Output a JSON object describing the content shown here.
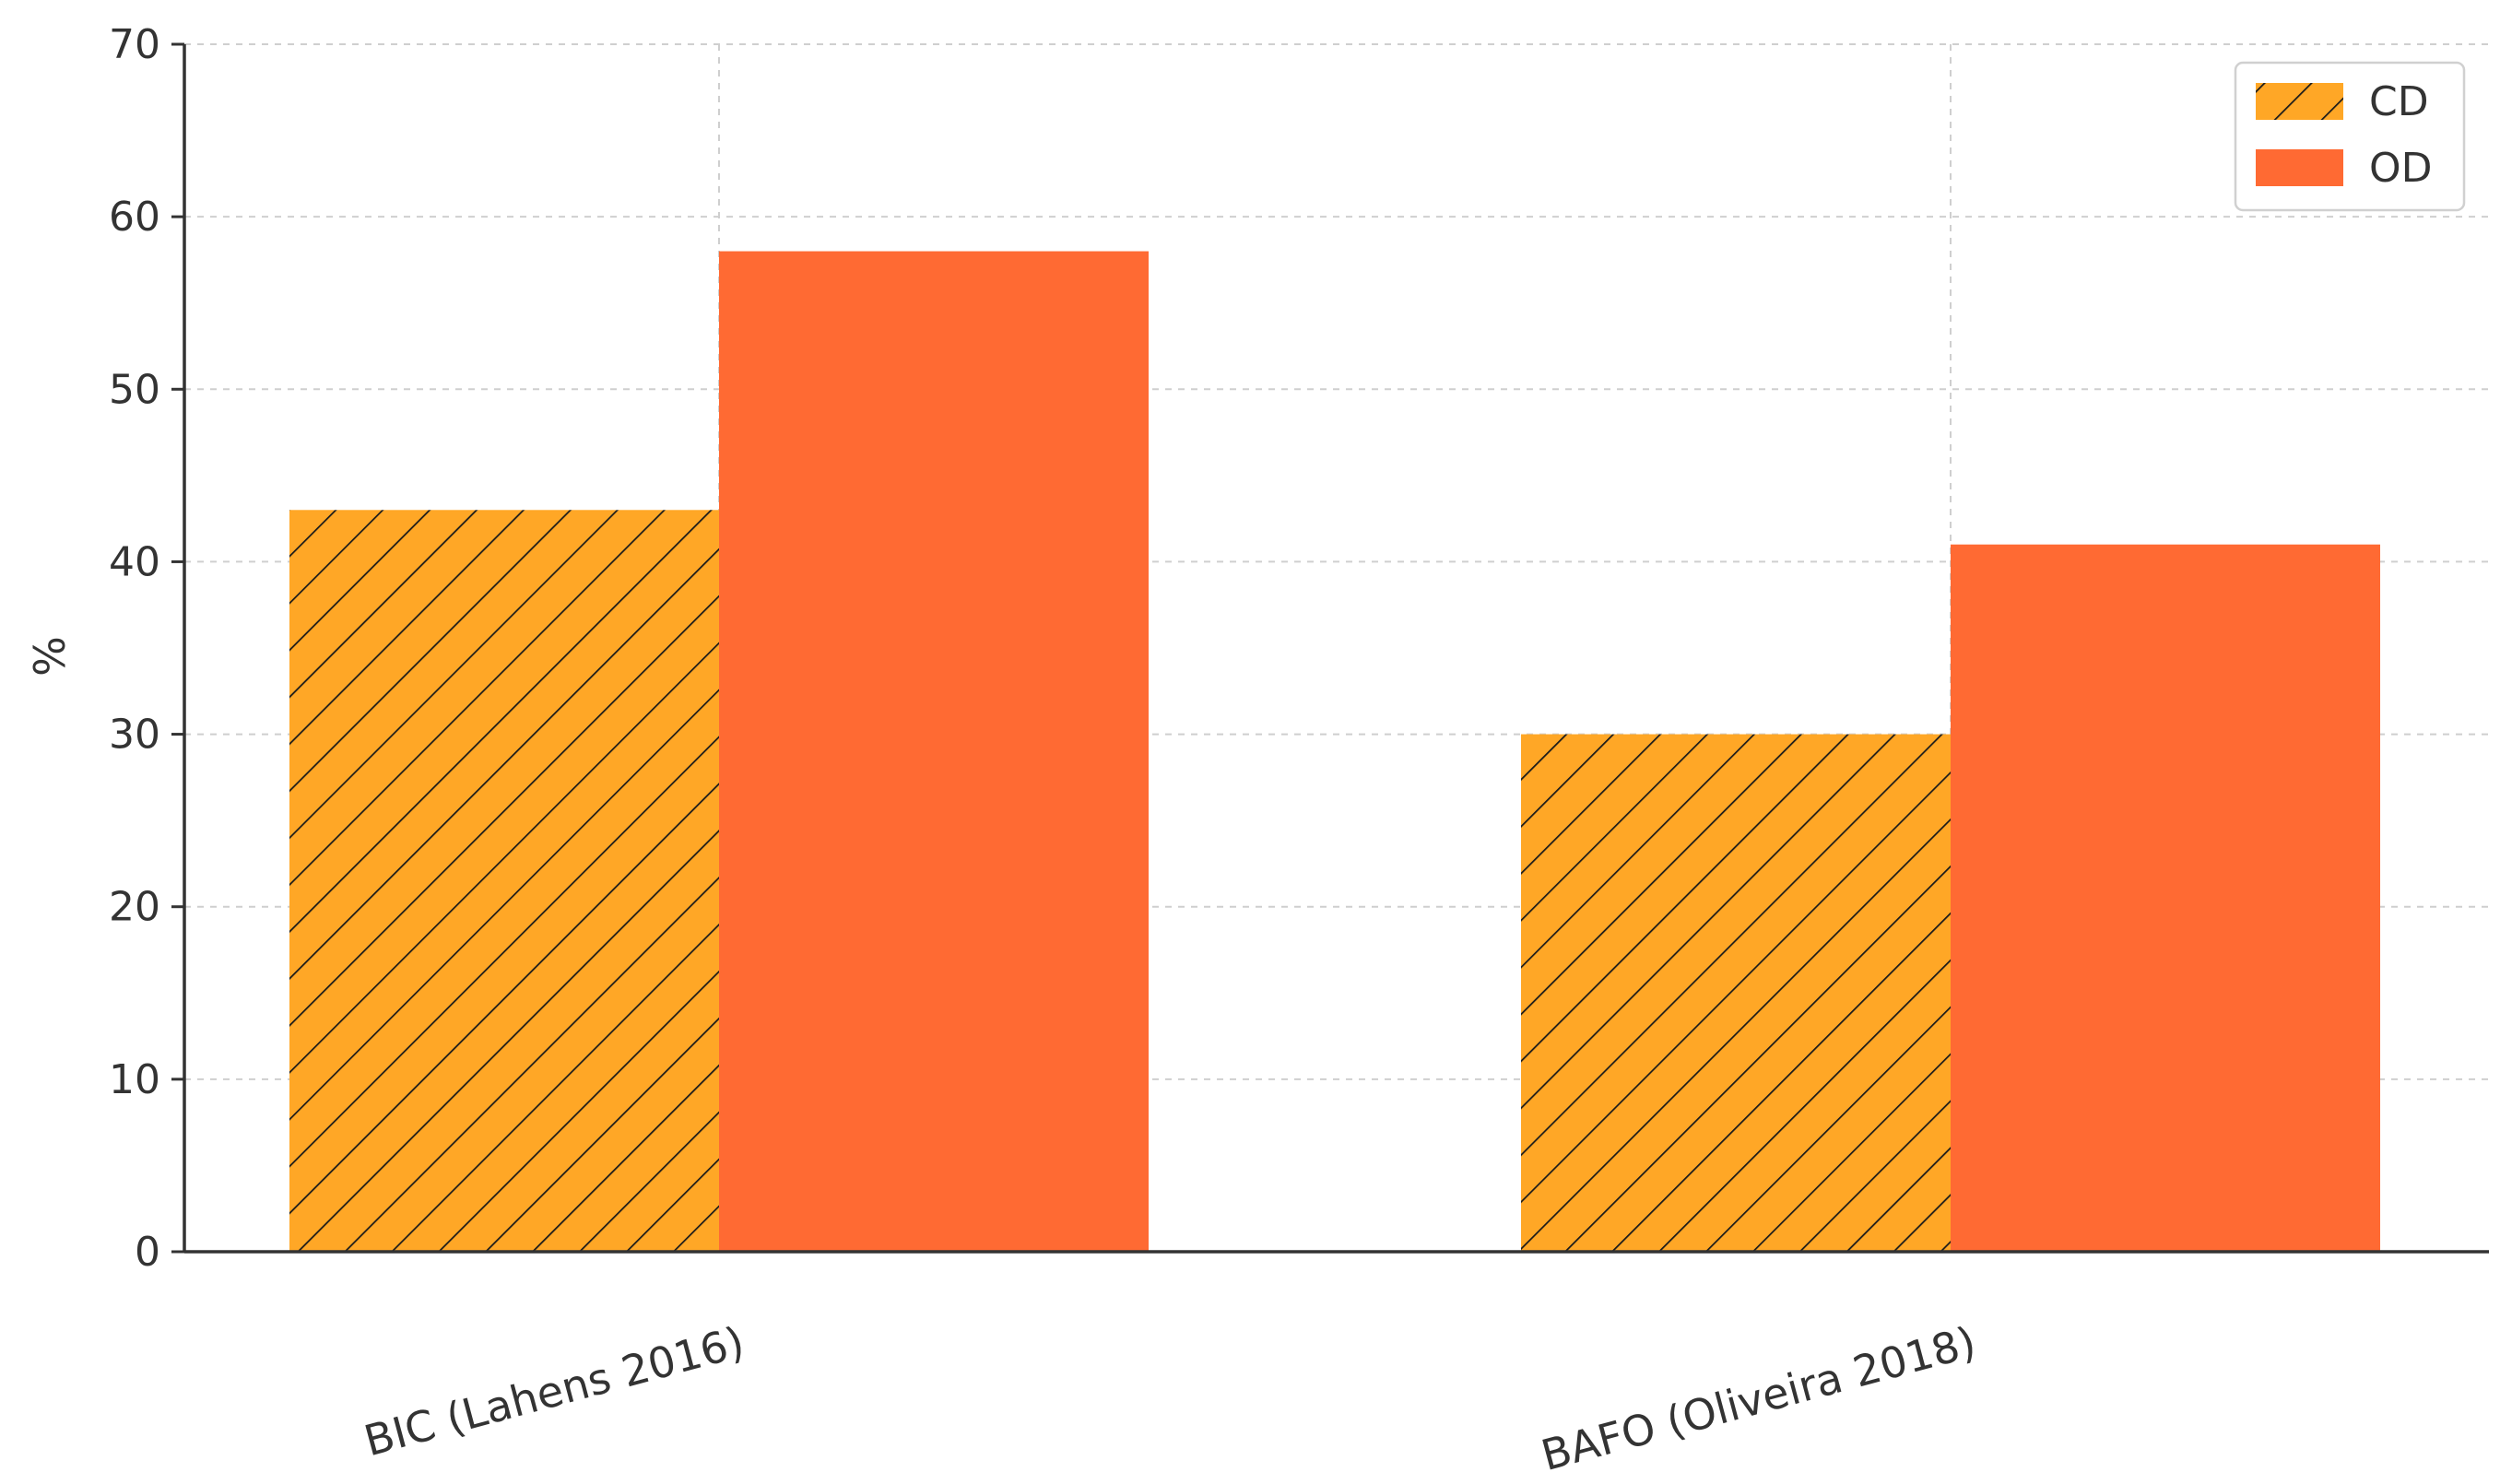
{
  "chart_data": {
    "type": "bar",
    "title": "",
    "xlabel": "",
    "ylabel": "%",
    "categories": [
      "BIC (Lahens 2016)",
      "BAFO (Oliveira 2018)"
    ],
    "series": [
      {
        "name": "CD",
        "values": [
          43,
          30
        ],
        "color": "#FFA726",
        "hatch": "diagonal"
      },
      {
        "name": "OD",
        "values": [
          58,
          41
        ],
        "color": "#FF6A33",
        "hatch": "none"
      }
    ],
    "ylim": [
      0,
      70
    ],
    "yticks": [
      0,
      10,
      20,
      30,
      40,
      50,
      60,
      70
    ],
    "grid": true,
    "legend_position": "top-right"
  }
}
